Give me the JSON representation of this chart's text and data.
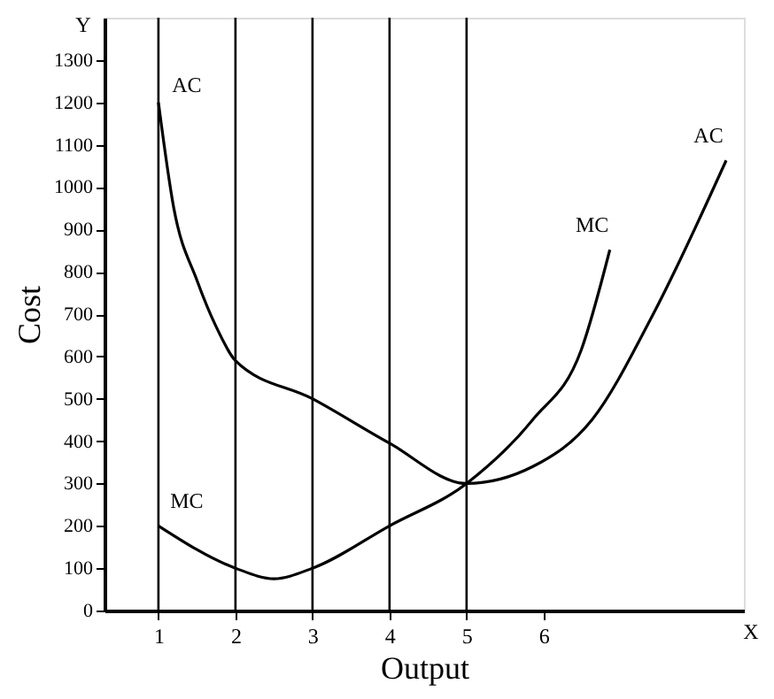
{
  "chart_data": {
    "type": "line",
    "xlabel": "Output",
    "ylabel": "Cost",
    "xlim": [
      0.3,
      8.6
    ],
    "ylim": [
      0,
      1400
    ],
    "xticks": [
      1,
      2,
      3,
      4,
      5,
      6
    ],
    "yticks": [
      0,
      100,
      200,
      300,
      400,
      500,
      600,
      700,
      800,
      900,
      1000,
      1100,
      1200,
      1300
    ],
    "grid": false,
    "legend": false,
    "marker": "none",
    "line_style": "solid",
    "series": [
      {
        "name": "AC",
        "color": "#000000",
        "x": [
          1,
          1.2,
          1.5,
          1.75,
          2,
          3,
          4,
          5,
          5.86,
          6.63,
          7.42,
          8.37
        ],
        "values": [
          1200,
          950,
          780,
          670,
          590,
          500,
          395,
          300,
          340,
          451,
          699,
          1063
        ]
      },
      {
        "name": "MC",
        "color": "#000000",
        "x": [
          1,
          2,
          2.5,
          3,
          4,
          5,
          5.86,
          6.49,
          6.86
        ],
        "values": [
          200,
          100,
          75,
          100,
          200,
          300,
          451,
          616,
          852
        ]
      }
    ],
    "ref_lines": [
      {
        "axis": "x",
        "value": 1
      },
      {
        "axis": "x",
        "value": 2
      },
      {
        "axis": "x",
        "value": 3
      },
      {
        "axis": "x",
        "value": 4
      },
      {
        "axis": "x",
        "value": 5
      }
    ],
    "annotations": [
      "Y",
      "X"
    ]
  }
}
